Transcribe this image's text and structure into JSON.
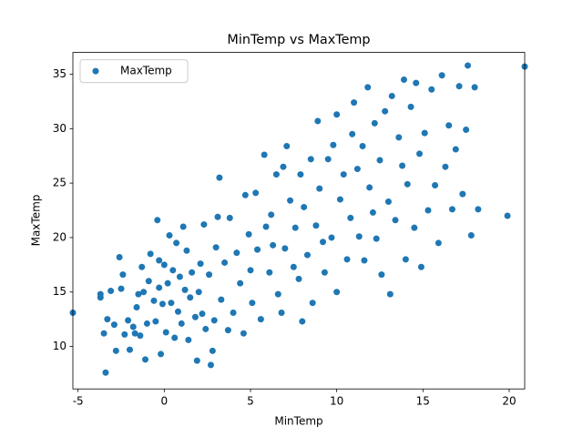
{
  "chart_data": {
    "type": "scatter",
    "title": "MinTemp vs MaxTemp",
    "x_label": "MinTemp",
    "y_label": "MaxTemp",
    "xlim": [
      -5.3,
      20.9
    ],
    "ylim": [
      6.1,
      37.0
    ],
    "xticks": [
      -5,
      0,
      5,
      10,
      15,
      20
    ],
    "yticks": [
      10,
      15,
      20,
      25,
      30,
      35
    ],
    "legend": "upper left",
    "series": [
      {
        "name": "MaxTemp",
        "color": "#1f77b4",
        "x": [
          -5.3,
          -3.7,
          -3.7,
          -3.5,
          -3.4,
          -3.3,
          -3.1,
          -2.9,
          -2.8,
          -2.6,
          -2.5,
          -2.4,
          -2.3,
          -2.1,
          -2.0,
          -1.8,
          -1.7,
          -1.6,
          -1.5,
          -1.4,
          -1.3,
          -1.2,
          -1.1,
          -1.0,
          -0.9,
          -0.8,
          -0.6,
          -0.5,
          -0.4,
          -0.3,
          -0.3,
          -0.2,
          -0.1,
          0,
          0.1,
          0.2,
          0.3,
          0.4,
          0.5,
          0.6,
          0.7,
          0.8,
          0.9,
          1.0,
          1.1,
          1.2,
          1.3,
          1.4,
          1.5,
          1.6,
          1.8,
          1.9,
          2.0,
          2.1,
          2.2,
          2.3,
          2.4,
          2.6,
          2.7,
          2.8,
          2.9,
          3.0,
          3.1,
          3.2,
          3.3,
          3.5,
          3.7,
          3.8,
          4.0,
          4.2,
          4.4,
          4.6,
          4.7,
          4.9,
          5.0,
          5.1,
          5.3,
          5.4,
          5.6,
          5.8,
          5.9,
          6.1,
          6.2,
          6.3,
          6.5,
          6.6,
          6.8,
          6.9,
          7.0,
          7.1,
          7.3,
          7.5,
          7.6,
          7.8,
          7.9,
          8.0,
          8.1,
          8.3,
          8.5,
          8.6,
          8.8,
          8.9,
          9.0,
          9.2,
          9.3,
          9.5,
          9.7,
          9.8,
          10.0,
          10.0,
          10.2,
          10.4,
          10.6,
          10.8,
          10.9,
          11.0,
          11.2,
          11.3,
          11.5,
          11.6,
          11.8,
          11.9,
          12.1,
          12.2,
          12.3,
          12.5,
          12.6,
          12.8,
          13.0,
          13.1,
          13.2,
          13.4,
          13.6,
          13.8,
          13.9,
          14.0,
          14.1,
          14.3,
          14.5,
          14.6,
          14.8,
          14.9,
          15.1,
          15.3,
          15.5,
          15.7,
          15.9,
          16.1,
          16.3,
          16.5,
          16.7,
          16.9,
          17.1,
          17.3,
          17.5,
          17.6,
          17.8,
          18.0,
          18.2,
          19.9,
          20.9
        ],
        "values": [
          13.1,
          14.5,
          14.8,
          11.2,
          7.6,
          12.5,
          15.1,
          12.0,
          9.6,
          18.2,
          15.3,
          16.6,
          11.1,
          12.4,
          9.7,
          11.8,
          11.2,
          13.6,
          14.8,
          11.0,
          17.3,
          15.0,
          8.8,
          12.1,
          16.0,
          18.5,
          14.2,
          12.3,
          21.6,
          17.9,
          15.4,
          9.3,
          13.9,
          17.5,
          11.3,
          15.8,
          20.2,
          14.0,
          17.0,
          10.8,
          19.5,
          13.2,
          16.4,
          12.1,
          21.0,
          15.2,
          18.8,
          10.6,
          14.5,
          16.8,
          12.7,
          8.7,
          15.0,
          17.6,
          13.0,
          21.2,
          11.6,
          16.6,
          8.3,
          9.6,
          12.4,
          19.1,
          21.9,
          25.5,
          14.3,
          17.7,
          11.5,
          21.8,
          13.1,
          18.6,
          15.8,
          11.2,
          23.9,
          20.3,
          17.0,
          14.0,
          24.1,
          18.9,
          12.5,
          27.6,
          21.0,
          16.8,
          22.1,
          19.3,
          25.8,
          14.8,
          13.1,
          26.5,
          19.0,
          28.4,
          23.4,
          17.3,
          20.9,
          16.2,
          25.8,
          12.3,
          22.8,
          18.4,
          27.2,
          14.0,
          21.1,
          30.7,
          24.5,
          19.6,
          16.8,
          27.2,
          20.0,
          28.5,
          31.3,
          15.0,
          23.5,
          25.8,
          18.0,
          21.8,
          29.5,
          32.4,
          26.3,
          20.1,
          28.4,
          17.9,
          33.8,
          24.6,
          22.3,
          30.5,
          19.9,
          27.1,
          16.6,
          31.6,
          23.3,
          14.8,
          33.0,
          21.6,
          29.2,
          26.6,
          34.5,
          18.0,
          24.9,
          32.0,
          20.9,
          34.2,
          27.7,
          17.3,
          29.6,
          22.5,
          33.6,
          24.8,
          19.5,
          34.9,
          26.5,
          30.3,
          22.6,
          28.1,
          33.9,
          24.0,
          29.9,
          35.8,
          20.2,
          33.8,
          22.6,
          22.0,
          35.7
        ]
      }
    ]
  }
}
